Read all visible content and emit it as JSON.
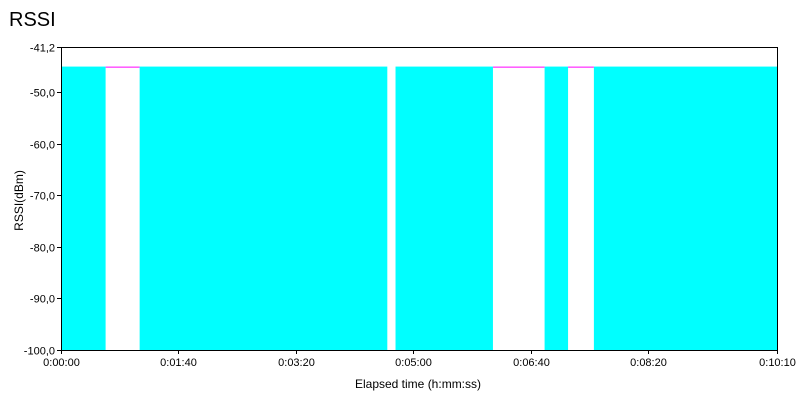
{
  "chart_data": {
    "type": "area",
    "title": "RSSI",
    "xlabel": "Elapsed time (h:mm:ss)",
    "ylabel": "RSSI(dBm)",
    "x_unit": "seconds",
    "xlim": [
      0,
      610
    ],
    "ylim": [
      -100.0,
      -41.2
    ],
    "grid": false,
    "legend": "none",
    "xticks": [
      {
        "value": 0,
        "label": "0:00:00"
      },
      {
        "value": 100,
        "label": "0:01:40"
      },
      {
        "value": 200,
        "label": "0:03:20"
      },
      {
        "value": 300,
        "label": "0:05:00"
      },
      {
        "value": 400,
        "label": "0:06:40"
      },
      {
        "value": 500,
        "label": "0:08:20"
      },
      {
        "value": 610,
        "label": "0:10:10"
      }
    ],
    "yticks": [
      {
        "value": -41.2,
        "label": "-41,2"
      },
      {
        "value": -50.0,
        "label": "-50,0"
      },
      {
        "value": -60.0,
        "label": "-60,0"
      },
      {
        "value": -70.0,
        "label": "-70,0"
      },
      {
        "value": -80.0,
        "label": "-80,0"
      },
      {
        "value": -90.0,
        "label": "-90,0"
      },
      {
        "value": -100.0,
        "label": "-100,0"
      }
    ],
    "series": [
      {
        "color": "#00ffff",
        "segments": [
          {
            "x_start": 0,
            "x_end": 38,
            "y": -45.0
          },
          {
            "x_start": 67,
            "x_end": 278,
            "y": -45.0
          },
          {
            "x_start": 285,
            "x_end": 368,
            "y": -45.0
          },
          {
            "x_start": 412,
            "x_end": 432,
            "y": -45.0
          },
          {
            "x_start": 454,
            "x_end": 610,
            "y": -45.0
          }
        ]
      },
      {
        "color": "#ff00ff",
        "segments": [
          {
            "x_start": 38,
            "x_end": 67,
            "y": -45.0
          },
          {
            "x_start": 368,
            "x_end": 412,
            "y": -45.0
          },
          {
            "x_start": 432,
            "x_end": 454,
            "y": -45.0
          }
        ]
      }
    ]
  }
}
